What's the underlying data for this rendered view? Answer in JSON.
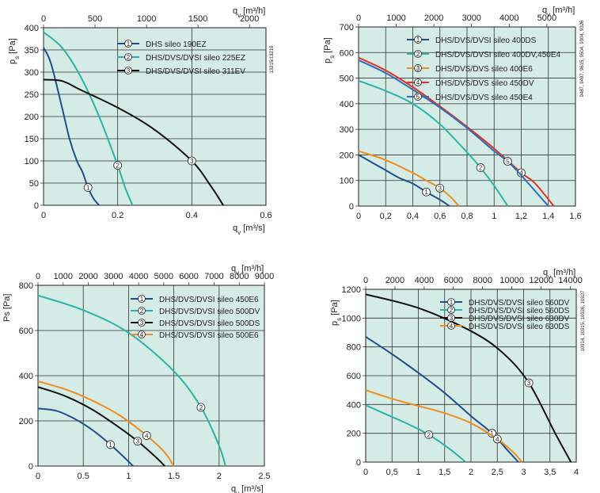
{
  "chart_data": [
    {
      "type": "line",
      "ylabel": "p_s [Pa]",
      "xlabel_top": "q_v [m³/h]",
      "xlabel_bottom": "q_v [m³/s]",
      "xlim": [
        0,
        0.6
      ],
      "ylim": [
        0,
        400
      ],
      "top_xlim": [
        0,
        2160
      ],
      "x_ticks": [
        "0",
        "0.2",
        "0.4",
        "0.6"
      ],
      "top_ticks": [
        "0",
        "500",
        "1000",
        "1500",
        "2000"
      ],
      "y_ticks": [
        "0",
        "50",
        "100",
        "150",
        "200",
        "250",
        "300",
        "350",
        "400"
      ],
      "side_text": "13215/13219",
      "series": [
        {
          "name": "DHS sileo 190EZ",
          "marker": "1",
          "color": "#1f4e8c",
          "x": [
            0,
            0.02,
            0.05,
            0.07,
            0.09,
            0.105,
            0.12,
            0.135,
            0.15
          ],
          "y": [
            355,
            320,
            220,
            150,
            100,
            75,
            40,
            15,
            0
          ]
        },
        {
          "name": "DHS/DVS/DVSI sileo 225EZ",
          "marker": "2",
          "color": "#2bb3a6",
          "x": [
            0,
            0.05,
            0.1,
            0.15,
            0.2,
            0.22,
            0.24
          ],
          "y": [
            390,
            355,
            290,
            200,
            90,
            40,
            0
          ]
        },
        {
          "name": "DHS/DVS/DVSI sileo 311EV",
          "marker": "3",
          "color": "#111111",
          "x": [
            0,
            0.05,
            0.1,
            0.2,
            0.3,
            0.4,
            0.45,
            0.485
          ],
          "y": [
            283,
            280,
            260,
            220,
            170,
            100,
            45,
            0
          ]
        }
      ]
    },
    {
      "type": "line",
      "ylabel": "p_s [Pa]",
      "xlabel_top": "q_v [m³/h]",
      "xlim": [
        0,
        1.6
      ],
      "ylim": [
        0,
        700
      ],
      "top_xlim": [
        0,
        5760
      ],
      "x_ticks": [
        "0",
        "0,2",
        "0,4",
        "0,6",
        "0,8",
        "1",
        "1,2",
        "1,4",
        "1,6"
      ],
      "top_ticks": [
        "0",
        "1000",
        "2000",
        "3000",
        "4000",
        "5000"
      ],
      "y_ticks": [
        "0",
        "100",
        "200",
        "300",
        "400",
        "500",
        "600",
        "700"
      ],
      "side_text": "9487, 9497, 9615, 9504, 9304, 9326",
      "series": [
        {
          "name": "DHS/DVS/DVSI sileo 400DS",
          "marker": "1",
          "color": "#1f4e8c",
          "x": [
            0,
            0.1,
            0.2,
            0.3,
            0.4,
            0.5,
            0.6,
            0.67
          ],
          "y": [
            200,
            170,
            140,
            110,
            88,
            55,
            25,
            0
          ]
        },
        {
          "name": "DHS/DVS/DVSI sileo 400DV,450E4",
          "marker": "2",
          "color": "#2bb3a6",
          "x": [
            0,
            0.2,
            0.4,
            0.6,
            0.8,
            0.9,
            1.0,
            1.1
          ],
          "y": [
            490,
            450,
            400,
            320,
            210,
            150,
            80,
            0
          ]
        },
        {
          "name": "DHS/DVS/DVS sileo 400E6",
          "marker": "3",
          "color": "#f08c1e",
          "x": [
            0,
            0.2,
            0.4,
            0.5,
            0.6,
            0.68,
            0.74
          ],
          "y": [
            215,
            180,
            130,
            100,
            70,
            35,
            0
          ]
        },
        {
          "name": "DHS/DVS/DVS sileo 450DV",
          "marker": "4",
          "color": "#e0322b",
          "x": [
            0,
            0.2,
            0.4,
            0.6,
            0.8,
            1.0,
            1.2,
            1.3,
            1.44
          ],
          "y": [
            580,
            530,
            465,
            390,
            310,
            225,
            130,
            90,
            0
          ]
        },
        {
          "name": "DHS/DVS/DVS sileo 450E4",
          "marker": "5",
          "color": "#2a6fb8",
          "x": [
            0,
            0.2,
            0.4,
            0.6,
            0.8,
            1.0,
            1.1,
            1.2,
            1.4
          ],
          "y": [
            570,
            520,
            455,
            385,
            305,
            215,
            175,
            120,
            0
          ]
        }
      ]
    },
    {
      "type": "line",
      "ylabel": "Ps [Pa]",
      "xlabel_top": "q_v [m³/h]",
      "xlabel_bottom": "q_v [m³/s]",
      "xlim": [
        0,
        2.5
      ],
      "ylim": [
        0,
        800
      ],
      "top_xlim": [
        0,
        9000
      ],
      "x_ticks": [
        "0",
        "0.5",
        "1",
        "1.5",
        "2",
        "2.5"
      ],
      "top_ticks": [
        "0",
        "1000",
        "2000",
        "3000",
        "4000",
        "5000",
        "6000",
        "7000",
        "8000",
        "9000"
      ],
      "y_ticks": [
        "0",
        "200",
        "400",
        "600",
        "800"
      ],
      "series": [
        {
          "name": "DHS/DVS/DVSI sileo 450E6",
          "marker": "1",
          "color": "#1f4e8c",
          "x": [
            0,
            0.2,
            0.4,
            0.6,
            0.8,
            1.0,
            1.05
          ],
          "y": [
            255,
            245,
            210,
            160,
            95,
            20,
            0
          ]
        },
        {
          "name": "DHS/DVS/DVSI sileo 500DV",
          "marker": "2",
          "color": "#2bb3a6",
          "x": [
            0,
            0.5,
            1.0,
            1.5,
            1.8,
            2.0,
            2.07
          ],
          "y": [
            755,
            690,
            590,
            420,
            260,
            90,
            0
          ]
        },
        {
          "name": "DHS/DVS/DVSI sileo 500DS",
          "marker": "3",
          "color": "#111111",
          "x": [
            0,
            0.3,
            0.6,
            0.9,
            1.1,
            1.3,
            1.4
          ],
          "y": [
            350,
            310,
            250,
            170,
            110,
            40,
            0
          ]
        },
        {
          "name": "DHS/DVS/DVSI sileo 500E6",
          "marker": "4",
          "color": "#f08c1e",
          "x": [
            0,
            0.3,
            0.6,
            0.9,
            1.2,
            1.4,
            1.5
          ],
          "y": [
            375,
            340,
            290,
            225,
            135,
            60,
            0
          ]
        }
      ]
    },
    {
      "type": "line",
      "ylabel": "p_s [Pa]",
      "xlabel_top": "q_v [m³/h]",
      "xlim": [
        0,
        4
      ],
      "ylim": [
        0,
        1200
      ],
      "top_xlim": [
        0,
        14400
      ],
      "x_ticks": [
        "0",
        "0,5",
        "1",
        "1,5",
        "2",
        "2,5",
        "3",
        "3,5",
        "4"
      ],
      "top_ticks": [
        "0",
        "2000",
        "4000",
        "6000",
        "8000",
        "10000",
        "12000",
        "14000"
      ],
      "y_ticks": [
        "0",
        "200",
        "400",
        "600",
        "800",
        "1000",
        "1200"
      ],
      "side_text": "10914, 10915, 10926, 10927",
      "series": [
        {
          "name": "DHS/DVS/DVSI sileo 560DV",
          "marker": "1",
          "color": "#1f4e8c",
          "x": [
            0,
            0.5,
            1.0,
            1.5,
            2.0,
            2.4,
            2.7,
            2.9
          ],
          "y": [
            870,
            750,
            620,
            480,
            320,
            200,
            80,
            0
          ]
        },
        {
          "name": "DHS/DVS/DVSI sileo 560DS",
          "marker": "2",
          "color": "#2bb3a6",
          "x": [
            0,
            0.4,
            0.8,
            1.2,
            1.6,
            1.9
          ],
          "y": [
            395,
            330,
            265,
            190,
            90,
            0
          ]
        },
        {
          "name": "DHS/DVS/DVSI sileo 630DV",
          "marker": "3",
          "color": "#111111",
          "x": [
            0,
            1.0,
            2.0,
            2.6,
            3.1,
            3.6,
            3.9
          ],
          "y": [
            1165,
            1070,
            910,
            760,
            550,
            200,
            0
          ]
        },
        {
          "name": "DHS/DVS/DVSI sileo 630DS",
          "marker": "4",
          "color": "#f08c1e",
          "x": [
            0,
            0.5,
            1.0,
            1.5,
            2.0,
            2.5,
            2.8,
            2.97
          ],
          "y": [
            500,
            440,
            390,
            340,
            270,
            160,
            70,
            0
          ]
        }
      ]
    }
  ]
}
